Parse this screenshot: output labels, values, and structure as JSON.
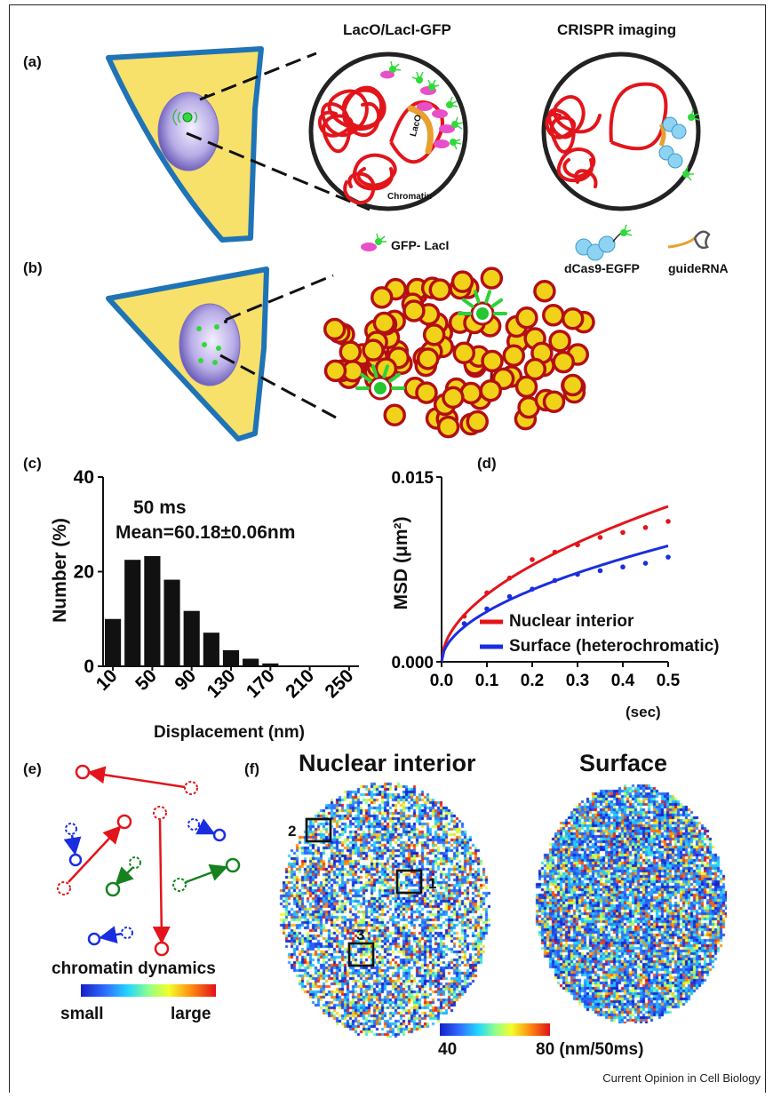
{
  "panels": {
    "a": {
      "letter": "(a)",
      "left_title": "LacO/LacI-GFP",
      "right_title": "CRISPR imaging",
      "laco_label": "LacO",
      "chromatin_label": "Chromatin",
      "legend_gfp": "GFP- LacI",
      "legend_dcas9": "dCas9-EGFP",
      "legend_guide": "guideRNA"
    },
    "b": {
      "letter": "(b)"
    },
    "c": {
      "letter": "(c)",
      "annotation_time": "50 ms",
      "annotation_mean": "Mean=60.18±0.06nm"
    },
    "d": {
      "letter": "(d)"
    },
    "e": {
      "letter": "(e)",
      "caption": "chromatin dynamics",
      "scale_low": "small",
      "scale_high": "large"
    },
    "f": {
      "letter": "(f)",
      "title_left": "Nuclear interior",
      "title_right": "Surface",
      "box_labels": [
        "1",
        "2",
        "3"
      ],
      "scale_min": "40",
      "scale_max": "80 (nm/50ms)"
    }
  },
  "footer": "Current Opinion in Cell Biology",
  "chart_data": [
    {
      "type": "bar",
      "xlabel": "Displacement (nm)",
      "ylabel": "Number (%)",
      "ylim": [
        0,
        40
      ],
      "yticks": [
        "0",
        "20",
        "40"
      ],
      "xticks": [
        "10",
        "50",
        "90",
        "130",
        "170",
        "210",
        "250"
      ],
      "x": [
        10,
        30,
        50,
        70,
        90,
        110,
        130,
        150,
        170,
        190,
        210,
        230,
        250
      ],
      "values": [
        10,
        22.5,
        23.3,
        18.3,
        11.7,
        7.1,
        3.4,
        1.6,
        0.6,
        0.2,
        0.1,
        0,
        0
      ]
    },
    {
      "type": "line",
      "xlabel": "(sec)",
      "ylabel": "MSD (μm²)",
      "xlim": [
        0,
        0.5
      ],
      "ylim": [
        0,
        0.015
      ],
      "xticks": [
        "0.0",
        "0.1",
        "0.2",
        "0.3",
        "0.4",
        "0.5"
      ],
      "yticks": [
        "0.000",
        "0.015"
      ],
      "legend_position": "bottom-right",
      "series": [
        {
          "name": "Nuclear interior",
          "color": "#e2151b",
          "points_x": [
            0.05,
            0.1,
            0.15,
            0.2,
            0.25,
            0.3,
            0.35,
            0.4,
            0.45,
            0.5
          ],
          "points_y": [
            0.0037,
            0.0056,
            0.0068,
            0.0083,
            0.0089,
            0.0095,
            0.0101,
            0.0105,
            0.0109,
            0.0114
          ],
          "fit_coefficient": 0.0181,
          "fit_exponent": 0.52
        },
        {
          "name": "Surface (heterochromatic)",
          "color": "#1a2ee0",
          "points_x": [
            0.05,
            0.1,
            0.15,
            0.2,
            0.25,
            0.3,
            0.35,
            0.4,
            0.45,
            0.5
          ],
          "points_y": [
            0.0031,
            0.0043,
            0.0053,
            0.0059,
            0.0066,
            0.0071,
            0.0074,
            0.0077,
            0.008,
            0.0085
          ],
          "fit_coefficient": 0.0135,
          "fit_exponent": 0.52
        }
      ]
    }
  ]
}
